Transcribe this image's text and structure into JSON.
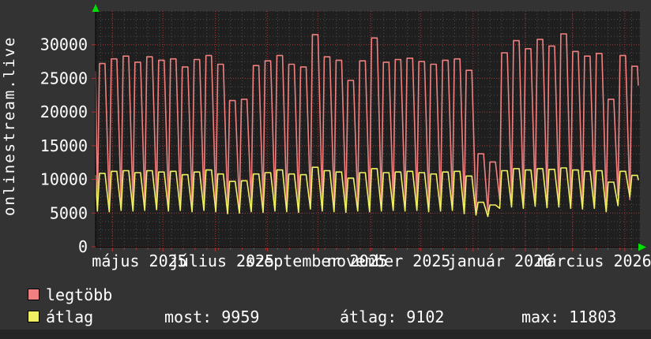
{
  "left_vertical_label": "onlinestream.live",
  "colors": {
    "outer_bg": "#333333",
    "plot_bg": "#1f1f1f",
    "grid_minor": "#4e4e4e",
    "grid_major_red": "#a33b3b",
    "grid_month_red": "#993333",
    "axis": "#000000",
    "tick_red": "#b03030",
    "arrow_green": "#00dd00",
    "text": "#ffffff",
    "series_max": "#f08080",
    "series_avg": "#f0f062"
  },
  "legend": {
    "items": [
      {
        "label": "legtöbb",
        "color": "#f08080"
      },
      {
        "label": "átlag",
        "color": "#f0f062"
      }
    ]
  },
  "stats": {
    "most": "most: 9959",
    "atlag": "átlag: 9102",
    "max": "max: 11803"
  },
  "chart_data": {
    "type": "line",
    "title": "",
    "xlabel": "",
    "ylabel": "",
    "side_label": "onlinestream.live",
    "grid": true,
    "legend_position": "bottom-left",
    "span_days": 323,
    "ylim": [
      0,
      35000
    ],
    "y_ticks": [
      0,
      5000,
      10000,
      15000,
      20000,
      25000,
      30000
    ],
    "y_minor_step": 1250,
    "x_week_minor_step": 7,
    "month_gridline_days": [
      10,
      40,
      71,
      102,
      132,
      163,
      193,
      224,
      255,
      283,
      314
    ],
    "x_tick_labels": [
      {
        "label": "május 2025",
        "center_day": 26
      },
      {
        "label": "július 2025",
        "center_day": 75
      },
      {
        "label": "szeptember 2025",
        "center_day": 131
      },
      {
        "label": "november 2025",
        "center_day": 174
      },
      {
        "label": "január 2026",
        "center_day": 240
      },
      {
        "label": "március 2026",
        "center_day": 296
      }
    ],
    "series": [
      {
        "name": "legtöbb",
        "color": "#f08080",
        "week_length_days": 7.02,
        "start_value": 26000,
        "end_value": 24000,
        "peaks": [
          27200,
          27900,
          28300,
          27400,
          28200,
          27700,
          27900,
          26700,
          27800,
          28400,
          27100,
          21700,
          21900,
          26900,
          27600,
          28400,
          27100,
          26700,
          31500,
          28200,
          27700,
          24700,
          27600,
          31000,
          27400,
          27800,
          28000,
          27500,
          27100,
          27700,
          27900,
          26200,
          13800,
          12600,
          28800,
          30600,
          29400,
          30800,
          29800,
          31600,
          29000,
          28300,
          28700,
          21900,
          28400,
          26800
        ],
        "dips": [
          6500,
          6300,
          6600,
          6400,
          6500,
          6700,
          6400,
          6500,
          6300,
          6600,
          6400,
          6000,
          6100,
          6300,
          6400,
          6500,
          6300,
          6200,
          6800,
          6500,
          6400,
          6200,
          6500,
          6400,
          6300,
          6500,
          6400,
          6600,
          6400,
          6300,
          6500,
          6100,
          4800,
          5200,
          7000,
          7200,
          7000,
          7300,
          7100,
          7200,
          7000,
          6900,
          7000,
          6400,
          7600,
          7000
        ]
      },
      {
        "name": "átlag",
        "color": "#f0f062",
        "week_length_days": 7.02,
        "start_value": 10600,
        "end_value": 9959,
        "peaks": [
          10900,
          11200,
          11300,
          11000,
          11300,
          11100,
          11200,
          10700,
          11100,
          11400,
          10800,
          9700,
          9800,
          10800,
          11000,
          11400,
          10800,
          10700,
          11803,
          11300,
          11100,
          10200,
          11000,
          11600,
          11000,
          11100,
          11200,
          11000,
          10800,
          11100,
          11200,
          10500,
          6600,
          6200,
          11300,
          11600,
          11400,
          11600,
          11500,
          11700,
          11400,
          11200,
          11300,
          9600,
          11200,
          10600
        ],
        "dips": [
          5300,
          5200,
          5400,
          5300,
          5400,
          5500,
          5300,
          5400,
          5200,
          5400,
          5200,
          4900,
          5000,
          5200,
          5100,
          5300,
          5200,
          5100,
          5600,
          5300,
          5200,
          5100,
          5300,
          5200,
          5300,
          5400,
          5300,
          5400,
          5200,
          5300,
          5400,
          4900,
          4700,
          4500,
          5700,
          5900,
          5700,
          6000,
          5800,
          5900,
          5700,
          5600,
          5700,
          5200,
          6100,
          7400
        ]
      }
    ],
    "stats_shown": {
      "most": 9959,
      "atlag": 9102,
      "max": 11803
    }
  }
}
